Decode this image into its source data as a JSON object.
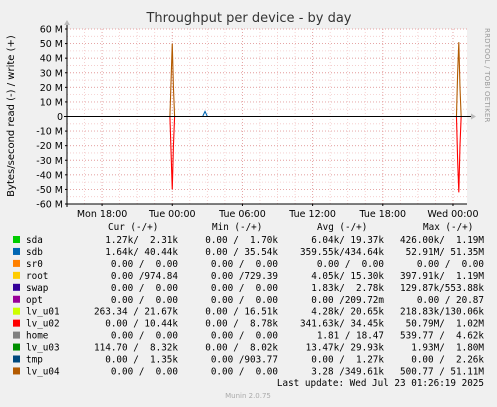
{
  "chart_data": {
    "type": "line",
    "title": "Throughput per device - by day",
    "ylabel": "Bytes/second read (-) / write (+)",
    "ylim": [
      -60000000,
      60000000
    ],
    "y_ticks": [
      {
        "value": 60000000,
        "label": "60 M"
      },
      {
        "value": 50000000,
        "label": "50 M"
      },
      {
        "value": 40000000,
        "label": "40 M"
      },
      {
        "value": 30000000,
        "label": "30 M"
      },
      {
        "value": 20000000,
        "label": "20 M"
      },
      {
        "value": 10000000,
        "label": "10 M"
      },
      {
        "value": 0,
        "label": "0"
      },
      {
        "value": -10000000,
        "label": "-10 M"
      },
      {
        "value": -20000000,
        "label": "-20 M"
      },
      {
        "value": -30000000,
        "label": "-30 M"
      },
      {
        "value": -40000000,
        "label": "-40 M"
      },
      {
        "value": -50000000,
        "label": "-50 M"
      },
      {
        "value": -60000000,
        "label": "-60 M"
      }
    ],
    "xlim": [
      -3.0,
      31.2
    ],
    "x_ticks": [
      {
        "value": 0,
        "label": "Mon 18:00"
      },
      {
        "value": 6,
        "label": "Tue 00:00"
      },
      {
        "value": 12,
        "label": "Tue 06:00"
      },
      {
        "value": 18,
        "label": "Tue 12:00"
      },
      {
        "value": 24,
        "label": "Tue 18:00"
      },
      {
        "value": 30,
        "label": "Wed 00:00"
      }
    ],
    "grid": true,
    "legend_header": {
      "cur": "Cur (-/+)",
      "min": "Min (-/+)",
      "avg": "Avg (-/+)",
      "max": "Max (-/+)"
    },
    "series": [
      {
        "name": "sda",
        "color": "#00cc00",
        "cur": "1.27k/  2.31k",
        "min": "0.00 /  1.70k",
        "avg": "6.04k/ 19.37k",
        "max": "426.00k/  1.19M"
      },
      {
        "name": "sdb",
        "color": "#0066b3",
        "cur": "1.64k/ 40.44k",
        "min": "0.00 / 35.54k",
        "avg": "359.55k/434.64k",
        "max": "52.91M/ 51.35M"
      },
      {
        "name": "sr0",
        "color": "#ff8000",
        "cur": "0.00 /  0.00",
        "min": "0.00 /  0.00",
        "avg": "0.00 /  0.00",
        "max": "0.00 /  0.00"
      },
      {
        "name": "root",
        "color": "#ffcc00",
        "cur": "0.00 /974.84",
        "min": "0.00 /729.39",
        "avg": "4.05k/ 15.30k",
        "max": "397.91k/  1.19M"
      },
      {
        "name": "swap",
        "color": "#330099",
        "cur": "0.00 /  0.00",
        "min": "0.00 /  0.00",
        "avg": "1.83k/  2.78k",
        "max": "129.87k/553.88k"
      },
      {
        "name": "opt",
        "color": "#990099",
        "cur": "0.00 /  0.00",
        "min": "0.00 /  0.00",
        "avg": "0.00 /209.72m",
        "max": "0.00 / 20.87"
      },
      {
        "name": "lv_u01",
        "color": "#ccff00",
        "cur": "263.34 / 21.67k",
        "min": "0.00 / 16.51k",
        "avg": "4.28k/ 20.65k",
        "max": "218.83k/130.06k"
      },
      {
        "name": "lv_u02",
        "color": "#ff0000",
        "cur": "0.00 / 10.44k",
        "min": "0.00 /  8.78k",
        "avg": "341.63k/ 34.45k",
        "max": "50.79M/  1.02M"
      },
      {
        "name": "home",
        "color": "#808080",
        "cur": "0.00 /  0.00",
        "min": "0.00 /  0.00",
        "avg": "1.81 / 18.47",
        "max": "539.77 /  4.62k"
      },
      {
        "name": "lv_u03",
        "color": "#008f00",
        "cur": "114.70 /  8.32k",
        "min": "0.00 /  8.02k",
        "avg": "13.47k/ 29.93k",
        "max": "1.93M/  1.80M"
      },
      {
        "name": "tmp",
        "color": "#00487d",
        "cur": "0.00 /  1.35k",
        "min": "0.00 /903.77",
        "avg": "0.00 /  1.27k",
        "max": "0.00 /  2.26k"
      },
      {
        "name": "lv_u04",
        "color": "#b35a00",
        "cur": "0.00 /  0.00",
        "min": "0.00 /  0.00",
        "avg": "3.28 /349.61k",
        "max": "500.77 / 51.11M"
      }
    ],
    "traces": [
      {
        "color": "#b35a00",
        "points": [
          [
            -3,
            0
          ],
          [
            5.8,
            0
          ],
          [
            5.9,
            25000000
          ],
          [
            6.0,
            50000000
          ],
          [
            6.1,
            20000000
          ],
          [
            6.2,
            0
          ],
          [
            30.3,
            0
          ],
          [
            30.4,
            30000000
          ],
          [
            30.5,
            51000000
          ],
          [
            30.6,
            20000000
          ],
          [
            30.7,
            0
          ],
          [
            31.2,
            0
          ]
        ]
      },
      {
        "color": "#ff0000",
        "points": [
          [
            -3,
            0
          ],
          [
            5.8,
            0
          ],
          [
            5.9,
            -25000000
          ],
          [
            6.0,
            -50000000
          ],
          [
            6.1,
            -20000000
          ],
          [
            6.2,
            0
          ],
          [
            30.3,
            0
          ],
          [
            30.4,
            -30000000
          ],
          [
            30.5,
            -52000000
          ],
          [
            30.6,
            -20000000
          ],
          [
            30.7,
            0
          ],
          [
            31.2,
            0
          ]
        ]
      },
      {
        "color": "#0066b3",
        "points": [
          [
            -3,
            0
          ],
          [
            8.6,
            0
          ],
          [
            8.8,
            3500000
          ],
          [
            9.0,
            0
          ],
          [
            31.2,
            0
          ]
        ]
      },
      {
        "color": "#00cc00",
        "points": [
          [
            -3,
            0
          ],
          [
            31.2,
            0
          ]
        ]
      }
    ],
    "last_update": "Last update: Wed Jul 23 01:26:19 2025",
    "footer": "Munin 2.0.75",
    "side_label": "RRDTOOL / TOBI OETIKER"
  }
}
